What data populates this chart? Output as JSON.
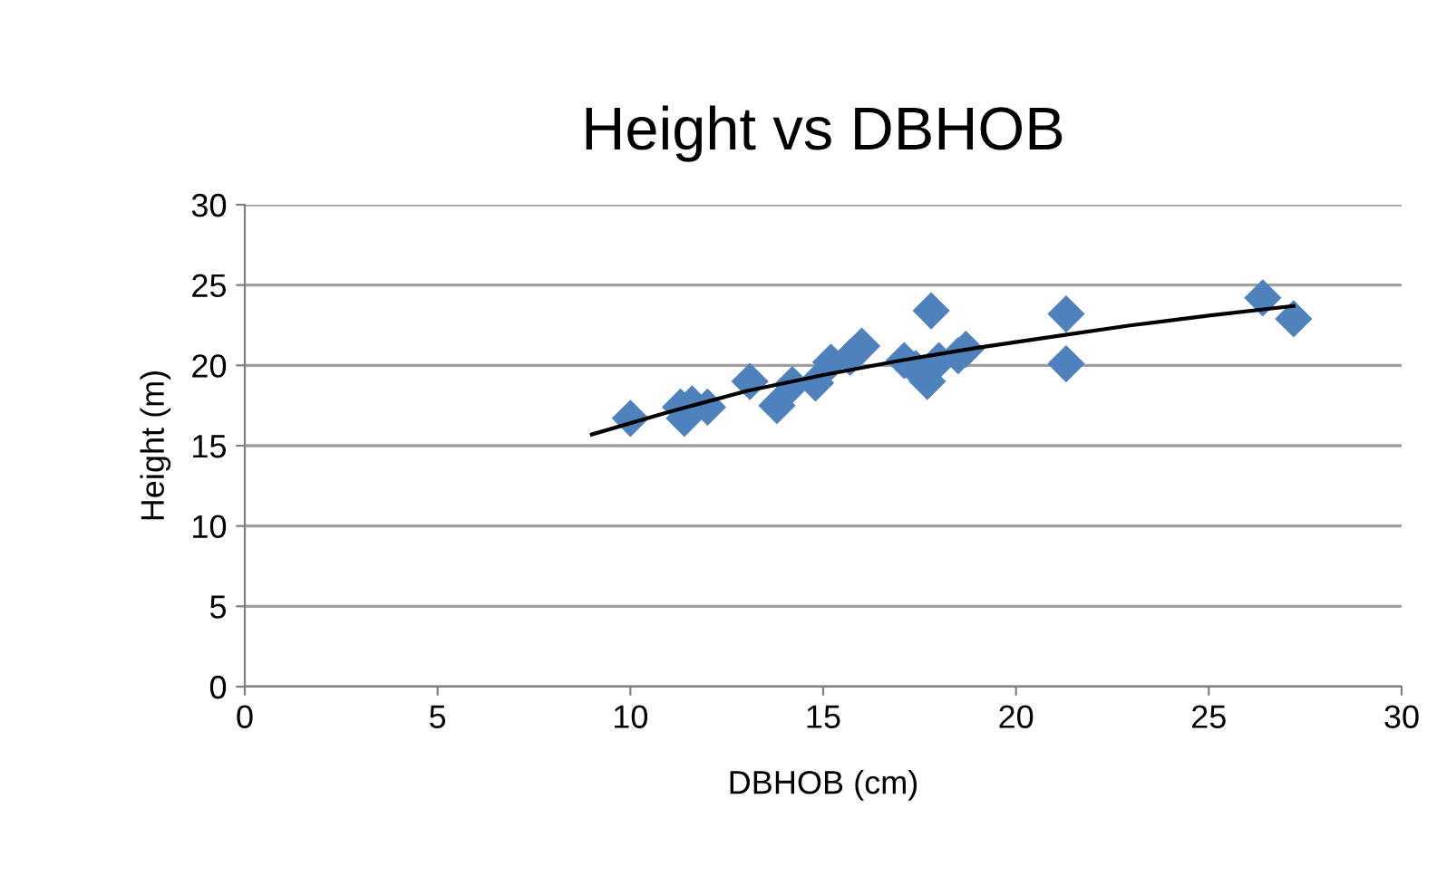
{
  "chart_data": {
    "type": "scatter",
    "title": "Height vs DBHOB",
    "xlabel": "DBHOB (cm)",
    "ylabel": "Height (m)",
    "series": [
      {
        "color": "#4f81bd",
        "marker": "diamond",
        "x": [
          10,
          11.3,
          11.4,
          11.6,
          12,
          13.1,
          13.8,
          14.2,
          14.8,
          15.2,
          15.7,
          16,
          17.1,
          17.4,
          17.7,
          17.8,
          18,
          18.5,
          18.7,
          21.3,
          21.3,
          26.4,
          27.2
        ],
        "values": [
          16.7,
          17.4,
          16.7,
          17.6,
          17.4,
          19,
          17.5,
          18.8,
          18.9,
          20.2,
          20.5,
          21.2,
          20.3,
          19.8,
          19,
          23.4,
          20.3,
          20.6,
          21,
          23.2,
          20.1,
          24.2,
          22.9
        ]
      },
      {
        "type": "line",
        "color": "#000000",
        "marker": "none",
        "x": [
          9,
          11,
          13,
          15,
          17,
          19,
          21,
          23,
          25,
          27.2
        ],
        "values": [
          15.7,
          17.1,
          18.4,
          19.4,
          20.3,
          21.1,
          21.8,
          22.5,
          23.1,
          23.7
        ]
      }
    ],
    "xlim": [
      0,
      30
    ],
    "xticks": [
      0,
      5,
      10,
      15,
      20,
      25,
      30
    ],
    "ylim": [
      0,
      30
    ],
    "yticks": [
      0,
      5,
      10,
      15,
      20,
      25,
      30
    ],
    "grid": "y",
    "legend": false
  }
}
